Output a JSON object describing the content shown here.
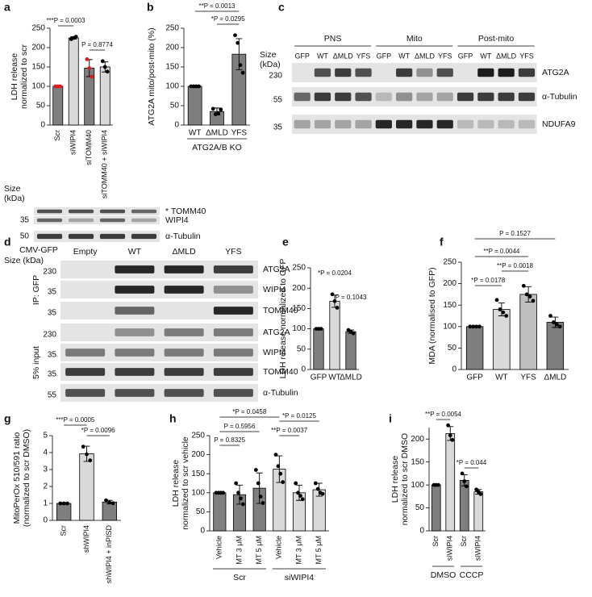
{
  "chart_data": [
    {
      "panel": "a",
      "type": "bar",
      "y_label": [
        "LDH release",
        "normalized to scr"
      ],
      "categories": [
        "Scr",
        "siWIPI4",
        "siTOMM40",
        "siTOMM40 + siWIPI4"
      ],
      "values": [
        100,
        225,
        147,
        150
      ],
      "errors": [
        0,
        3,
        22,
        13
      ],
      "colors": [
        "#7f7f7f",
        "#d9d9d9",
        "#7f7f7f",
        "#d9d9d9"
      ],
      "points": [
        [
          100,
          100,
          100
        ],
        [
          222,
          225,
          228
        ],
        [
          170,
          147,
          125
        ],
        [
          165,
          150,
          138
        ]
      ],
      "point_colors": [
        "#e31a1c",
        "#000000",
        "#e31a1c",
        "#000000"
      ],
      "ylim": [
        0,
        250
      ],
      "yticks": [
        0,
        50,
        100,
        150,
        200,
        250
      ],
      "annotations": [
        "***P = 0.0003",
        "P = 0.8774"
      ]
    },
    {
      "panel": "b",
      "type": "bar",
      "y_label": [
        "ATG2A mito/post-mito (%)"
      ],
      "categories": [
        "WT",
        "ΔMLD",
        "YFS"
      ],
      "groups": [
        "ATG2A/B KO"
      ],
      "values": [
        100,
        35,
        183
      ],
      "errors": [
        0,
        9,
        40
      ],
      "colors": [
        "#7f7f7f",
        "#7f7f7f",
        "#7f7f7f"
      ],
      "points": [
        [
          100,
          100,
          100,
          100
        ],
        [
          42,
          28,
          30,
          40
        ],
        [
          232,
          212,
          155,
          135
        ]
      ],
      "point_colors": [
        "#000000",
        "#000000",
        "#000000"
      ],
      "ylim": [
        0,
        250
      ],
      "yticks": [
        0,
        50,
        100,
        150,
        200,
        250
      ],
      "annotations": [
        "**P = 0.0013",
        "*P = 0.0295"
      ]
    },
    {
      "panel": "e",
      "type": "bar",
      "y_label": [
        "LDH release normalized to GFP"
      ],
      "categories": [
        "GFP",
        "WT",
        "ΔMLD"
      ],
      "values": [
        100,
        168,
        93
      ],
      "errors": [
        0,
        15,
        4
      ],
      "colors": [
        "#7f7f7f",
        "#d9d9d9",
        "#7f7f7f"
      ],
      "points": [
        [
          100,
          100,
          100
        ],
        [
          185,
          168,
          152
        ],
        [
          97,
          93,
          89
        ]
      ],
      "point_colors": [
        "#000000",
        "#000000",
        "#000000"
      ],
      "ylim": [
        0,
        250
      ],
      "yticks": [
        0,
        50,
        100,
        150,
        200,
        250
      ],
      "annotations": [
        "*P = 0.0204",
        "P = 0.1043"
      ]
    },
    {
      "panel": "f",
      "type": "bar",
      "y_label": [
        "MDA (normalised to GFP)"
      ],
      "categories": [
        "GFP",
        "WT",
        "YFS",
        "ΔMLD"
      ],
      "values": [
        100,
        140,
        175,
        110
      ],
      "errors": [
        0,
        15,
        18,
        12
      ],
      "colors": [
        "#7f7f7f",
        "#d9d9d9",
        "#bfbfbf",
        "#7f7f7f"
      ],
      "points": [
        [
          100,
          100,
          100,
          100
        ],
        [
          162,
          140,
          133,
          125
        ],
        [
          195,
          175,
          170,
          160
        ],
        [
          125,
          110,
          105,
          100
        ]
      ],
      "point_colors": [
        "#000000",
        "#000000",
        "#000000",
        "#000000"
      ],
      "ylim": [
        0,
        250
      ],
      "yticks": [
        0,
        50,
        100,
        150,
        200,
        250
      ],
      "annotations": [
        "P = 0.1527",
        "**P = 0.0044",
        "**P = 0.0018",
        "*P = 0.0178"
      ]
    },
    {
      "panel": "g",
      "type": "bar",
      "y_label": [
        "MitoPerOx 510/591 ratio",
        "(normalized to scr DMSO)"
      ],
      "categories": [
        "Scr",
        "shWIPI4",
        "shWIPI4 + inPISD"
      ],
      "values": [
        1,
        3.93,
        1.08
      ],
      "errors": [
        0,
        0.45,
        0.1
      ],
      "colors": [
        "#7f7f7f",
        "#d9d9d9",
        "#7f7f7f"
      ],
      "points": [
        [
          1,
          1,
          1
        ],
        [
          4.35,
          3.9,
          3.54
        ],
        [
          1.18,
          1.05,
          1.01
        ]
      ],
      "point_colors": [
        "#000000",
        "#000000",
        "#000000"
      ],
      "ylim": [
        0,
        5
      ],
      "yticks": [
        0,
        1,
        2,
        3,
        4,
        5
      ],
      "annotations": [
        "***P = 0.0005",
        "*P = 0.0096"
      ]
    },
    {
      "panel": "h",
      "type": "bar",
      "y_label": [
        "LDH release",
        "normalized to scr vehicle"
      ],
      "categories": [
        "Vehicle",
        "MT 3 μM",
        "MT 5 μM",
        "Vehicle",
        "MT 3 μM",
        "MT 5 μM"
      ],
      "groups": [
        "Scr",
        "siWIPI4"
      ],
      "values": [
        100,
        95,
        112,
        162,
        100,
        108
      ],
      "errors": [
        0,
        25,
        40,
        35,
        20,
        17
      ],
      "colors": [
        "#7f7f7f",
        "#7f7f7f",
        "#7f7f7f",
        "#d9d9d9",
        "#d9d9d9",
        "#d9d9d9"
      ],
      "points": [
        [
          100,
          100,
          100,
          100
        ],
        [
          125,
          100,
          85,
          70
        ],
        [
          160,
          125,
          90,
          73
        ],
        [
          200,
          170,
          150,
          128
        ],
        [
          125,
          100,
          92,
          83
        ],
        [
          125,
          110,
          100,
          97
        ]
      ],
      "point_colors": [
        "#000000",
        "#000000",
        "#000000",
        "#000000",
        "#000000",
        "#000000"
      ],
      "ylim": [
        0,
        250
      ],
      "yticks": [
        0,
        50,
        100,
        150,
        200,
        250
      ],
      "annotations": [
        "*P = 0.0458",
        "P = 0.5956",
        "P = 0.8325",
        "*P = 0.0125",
        "**P = 0.0037"
      ]
    },
    {
      "panel": "i",
      "type": "bar",
      "y_label": [
        "LDH release",
        "normalized to scr DMSO"
      ],
      "categories": [
        "Scr",
        "siWIPI4",
        "Scr",
        "siWIPI4"
      ],
      "groups": [
        "DMSO",
        "CCCP"
      ],
      "values": [
        100,
        212,
        110,
        85
      ],
      "errors": [
        0,
        15,
        12,
        5
      ],
      "colors": [
        "#7f7f7f",
        "#d9d9d9",
        "#7f7f7f",
        "#d9d9d9"
      ],
      "points": [
        [
          100,
          100,
          100
        ],
        [
          230,
          208,
          198
        ],
        [
          125,
          108,
          97
        ],
        [
          90,
          85,
          80
        ]
      ],
      "point_colors": [
        "#000000",
        "#000000",
        "#000000",
        "#000000"
      ],
      "ylim": [
        0,
        225
      ],
      "yticks": [
        0,
        50,
        100,
        150,
        200
      ],
      "annotations": [
        "**P = 0.0054",
        "*P = 0.044"
      ]
    }
  ],
  "blots": [
    {
      "panel": "c",
      "size_label": [
        "Size",
        "(kDa)"
      ],
      "groups": [
        "PNS",
        "Mito",
        "Post-mito"
      ],
      "lanes": [
        "GFP",
        "WT",
        "ΔMLD",
        "YFS",
        "GFP",
        "WT",
        "ΔMLD",
        "YFS",
        "GFP",
        "WT",
        "ΔMLD",
        "YFS"
      ],
      "rows": [
        {
          "size": 230,
          "label": "ATG2A"
        },
        {
          "size": 55,
          "label": "α-Tubulin"
        },
        {
          "size": 35,
          "label": "NDUFA9"
        }
      ]
    },
    {
      "size_label": [
        "Size",
        "(kDa)"
      ],
      "rows": [
        {
          "label": "* TOMM40"
        },
        {
          "size": 35,
          "label": "WIPI4"
        },
        {
          "size": 50,
          "label": "α-Tubulin"
        }
      ]
    },
    {
      "panel": "d",
      "header": "CMV-GFP",
      "size_label": "Size (kDa)",
      "lanes": [
        "Empty",
        "WT",
        "ΔMLD",
        "YFS"
      ],
      "sections": [
        {
          "label": "IP: GFP",
          "rows": [
            {
              "size": 230,
              "label": "ATG2A"
            },
            {
              "size": 35,
              "label": "WIPI4"
            },
            {
              "size": 35,
              "label": "TOMM40"
            }
          ]
        },
        {
          "label": "5% input",
          "rows": [
            {
              "size": 230,
              "label": "ATG2A"
            },
            {
              "size": 35,
              "label": "WIPI4"
            },
            {
              "size": 35,
              "label": "TOMM40"
            },
            {
              "size": 55,
              "label": "α-Tubulin"
            }
          ]
        }
      ]
    }
  ]
}
